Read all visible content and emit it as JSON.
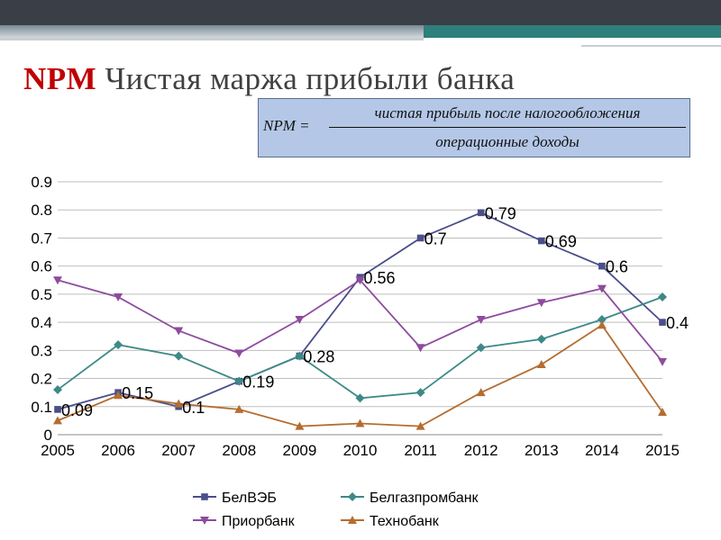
{
  "slide": {
    "title_abbr": "NPM",
    "title_text": "Чистая маржа прибыли банка",
    "formula": {
      "lhs": "NPM =",
      "numerator": "чистая прибыль после налогообложения",
      "denominator": "операционные доходы"
    }
  },
  "chart_data": {
    "type": "line",
    "categories": [
      "2005",
      "2006",
      "2007",
      "2008",
      "2009",
      "2010",
      "2011",
      "2012",
      "2013",
      "2014",
      "2015"
    ],
    "ylim": [
      0,
      0.9
    ],
    "yticks": [
      "0",
      "0.1",
      "0.2",
      "0.3",
      "0.4",
      "0.5",
      "0.6",
      "0.7",
      "0.8",
      "0.9"
    ],
    "grid": true,
    "legend_position": "bottom",
    "series": [
      {
        "name": "БелВЭБ",
        "color": "#4a4e8a",
        "marker": "square",
        "values": [
          0.09,
          0.15,
          0.1,
          0.19,
          0.28,
          0.56,
          0.7,
          0.79,
          0.69,
          0.6,
          0.4
        ],
        "labels": [
          "0.09",
          "0.15",
          "0.1",
          "0.19",
          "0.28",
          "0.56",
          "0.7",
          "0.79",
          "0.69",
          "0.6",
          "0.4"
        ]
      },
      {
        "name": "Белгазпромбанк",
        "color": "#3c8a87",
        "marker": "diamond",
        "values": [
          0.16,
          0.32,
          0.28,
          0.19,
          0.28,
          0.13,
          0.15,
          0.31,
          0.34,
          0.41,
          0.49
        ]
      },
      {
        "name": "Приорбанк",
        "color": "#8e4c9e",
        "marker": "triangle-down",
        "values": [
          0.55,
          0.49,
          0.37,
          0.29,
          0.41,
          0.55,
          0.31,
          0.41,
          0.47,
          0.52,
          0.26
        ]
      },
      {
        "name": "Технобанк",
        "color": "#b56d30",
        "marker": "triangle-up",
        "values": [
          0.05,
          0.14,
          0.11,
          0.09,
          0.03,
          0.04,
          0.03,
          0.15,
          0.25,
          0.39,
          0.08
        ]
      }
    ]
  }
}
